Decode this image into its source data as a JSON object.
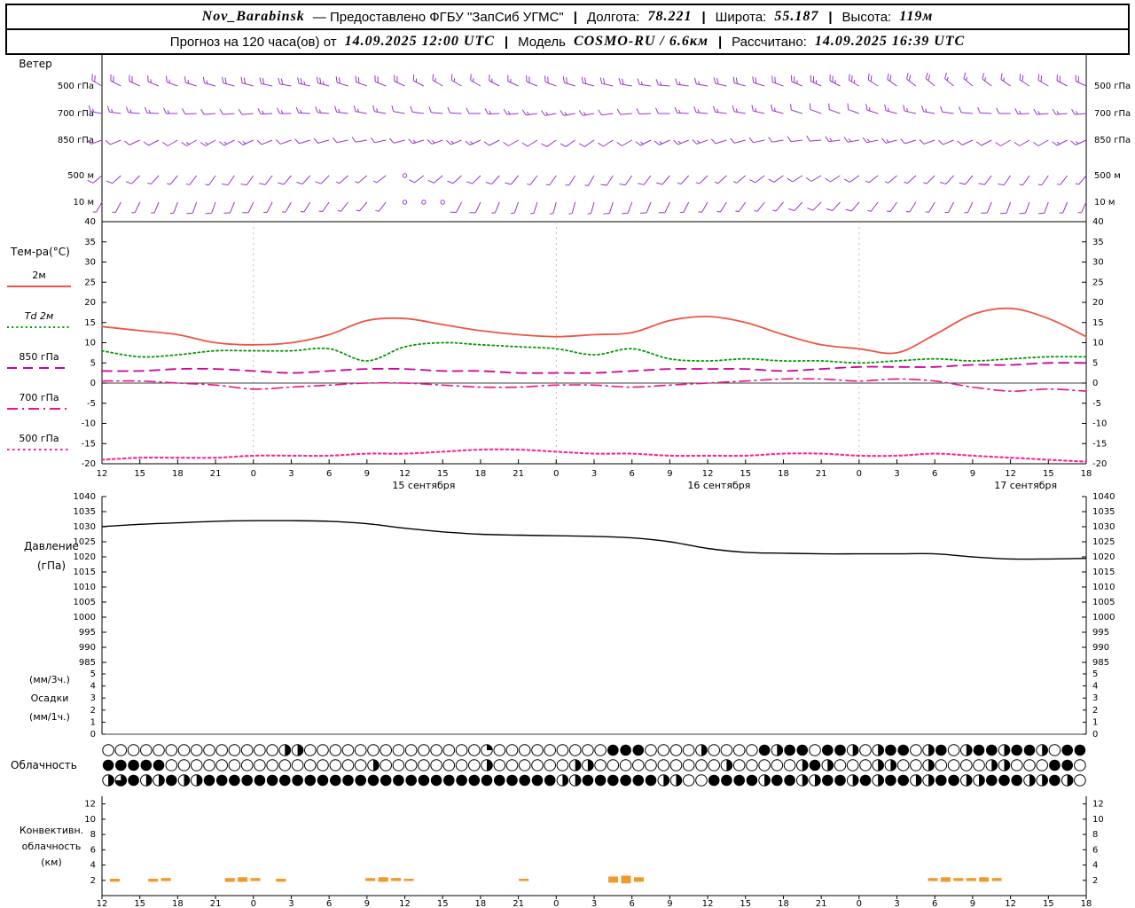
{
  "header": {
    "station": "Nov_Barabinsk",
    "provider": "— Предоставлено ФГБУ \"ЗапСиб УГМС\"",
    "sep": "|",
    "lon_label": "Долгота:",
    "lon": "78.221",
    "lat_label": "Широта:",
    "lat": "55.187",
    "alt_label": "Высота:",
    "alt": "119м",
    "forecast_label": "Прогноз на 120 часа(ов) от",
    "forecast_start": "14.09.2025 12:00 UTC",
    "model_label": "Модель",
    "model": "COSMO-RU / 6.6км",
    "calc_label": "Рассчитано:",
    "calc_time": "14.09.2025 16:39 UTC"
  },
  "x_axis": {
    "hour_step": 3,
    "hour_labels": [
      "12",
      "15",
      "18",
      "21",
      "0",
      "3",
      "6",
      "9",
      "12",
      "15",
      "18",
      "21",
      "0",
      "3",
      "6",
      "9",
      "12",
      "15",
      "18",
      "21",
      "0",
      "3",
      "6",
      "9",
      "12",
      "15",
      "18"
    ],
    "date_labels": [
      {
        "text": "15 сентября",
        "at_index": 8.5
      },
      {
        "text": "16 сентября",
        "at_index": 16.3
      },
      {
        "text": "17 сентября",
        "at_index": 24.4
      }
    ]
  },
  "chart_data": [
    {
      "id": "wind",
      "type": "wind_barbs",
      "title": "Ветер",
      "color": "#9933cc",
      "levels": [
        {
          "label": "500 гПа",
          "dirs_deg": [
            300,
            295,
            290,
            285,
            285,
            280,
            285,
            290,
            295,
            300,
            300,
            295,
            290,
            285,
            280,
            275,
            280,
            285,
            290,
            295,
            300,
            305,
            310,
            310,
            305,
            300,
            295
          ],
          "speeds_kt": [
            20,
            20,
            15,
            15,
            20,
            20,
            25,
            20,
            20,
            15,
            15,
            15,
            20,
            20,
            20,
            15,
            15,
            20,
            20,
            25,
            25,
            20,
            20,
            15,
            15,
            20,
            20
          ]
        },
        {
          "label": "700 гПа",
          "dirs_deg": [
            280,
            275,
            270,
            265,
            265,
            270,
            275,
            280,
            280,
            275,
            270,
            265,
            260,
            260,
            265,
            270,
            275,
            280,
            285,
            290,
            290,
            285,
            280,
            275,
            270,
            265,
            265
          ],
          "speeds_kt": [
            15,
            15,
            15,
            10,
            10,
            15,
            15,
            15,
            10,
            10,
            10,
            15,
            15,
            15,
            10,
            10,
            15,
            15,
            15,
            10,
            10,
            15,
            15,
            10,
            10,
            15,
            15
          ]
        },
        {
          "label": "850 гПа",
          "dirs_deg": [
            250,
            245,
            240,
            240,
            245,
            250,
            255,
            260,
            255,
            250,
            245,
            240,
            235,
            235,
            240,
            245,
            250,
            255,
            260,
            265,
            260,
            255,
            250,
            245,
            240,
            240,
            245
          ],
          "speeds_kt": [
            10,
            10,
            10,
            15,
            15,
            10,
            10,
            10,
            10,
            15,
            15,
            10,
            10,
            10,
            10,
            15,
            15,
            10,
            10,
            10,
            15,
            15,
            10,
            10,
            10,
            10,
            15
          ]
        },
        {
          "label": "500 м",
          "dirs_deg": [
            230,
            225,
            220,
            215,
            215,
            220,
            225,
            230,
            235,
            230,
            225,
            220,
            215,
            210,
            215,
            220,
            225,
            230,
            235,
            240,
            235,
            230,
            225,
            220,
            215,
            215,
            220
          ],
          "speeds_kt": [
            10,
            10,
            5,
            5,
            10,
            10,
            10,
            5,
            0,
            10,
            10,
            10,
            5,
            5,
            10,
            10,
            5,
            5,
            10,
            10,
            10,
            5,
            5,
            10,
            10,
            5,
            5
          ]
        },
        {
          "label": "10 м",
          "dirs_deg": [
            210,
            205,
            200,
            200,
            205,
            210,
            215,
            220,
            215,
            210,
            205,
            200,
            195,
            195,
            200,
            205,
            210,
            215,
            220,
            225,
            220,
            215,
            210,
            205,
            200,
            200,
            205
          ],
          "speeds_kt": [
            5,
            5,
            5,
            10,
            10,
            5,
            5,
            5,
            0,
            0,
            10,
            5,
            5,
            5,
            10,
            10,
            5,
            5,
            5,
            10,
            10,
            5,
            5,
            5,
            10,
            10,
            5
          ]
        }
      ]
    },
    {
      "id": "temperature",
      "type": "line",
      "title": "Тем-ра(°C)",
      "ylim": [
        -20,
        40
      ],
      "ytick_step": 5,
      "series": [
        {
          "name": "2м",
          "color": "#ee5544",
          "dash": "solid",
          "width": 1.8,
          "italic": false,
          "values": [
            14,
            13,
            12,
            10,
            9.5,
            10,
            12,
            15.5,
            16,
            14.5,
            13,
            12,
            11.5,
            12,
            12.5,
            15.5,
            16.5,
            15,
            12,
            9.5,
            8.5,
            7.5,
            12,
            17,
            18.5,
            16,
            11.5
          ]
        },
        {
          "name": "Td 2м",
          "color": "#009900",
          "dash": "dotted",
          "width": 1.8,
          "italic": true,
          "values": [
            8,
            6.5,
            7,
            8,
            8,
            8,
            8.5,
            5.5,
            9,
            10,
            9.5,
            9,
            8.5,
            7,
            8.5,
            6,
            5.5,
            6,
            5.5,
            5.5,
            5,
            5.5,
            6,
            5.5,
            6,
            6.5,
            6.5
          ]
        },
        {
          "name": "850 гПа",
          "color": "#cc0099",
          "dash": "longdash",
          "width": 1.8,
          "italic": false,
          "values": [
            3,
            3,
            3.5,
            3.5,
            3,
            2.5,
            3,
            3.5,
            3.5,
            3,
            3,
            2.5,
            2.5,
            2.5,
            3,
            3.5,
            3.5,
            3.5,
            3,
            3.5,
            4,
            4,
            4,
            4.5,
            4.5,
            5,
            5
          ]
        },
        {
          "name": "700 гПа",
          "color": "#ee1188",
          "dash": "dashdot",
          "width": 1.6,
          "italic": false,
          "values": [
            0.5,
            0.5,
            0,
            -0.5,
            -1.5,
            -1,
            -0.5,
            0,
            0,
            -0.5,
            -1,
            -1,
            -0.5,
            -0.5,
            -1,
            -0.5,
            0,
            0.5,
            1,
            1,
            0.5,
            1,
            0.5,
            -1,
            -2,
            -1.5,
            -2
          ]
        },
        {
          "name": "500 гПа",
          "color": "#ff2299",
          "dash": "dotted_bold",
          "width": 2.1,
          "italic": false,
          "values": [
            -19,
            -18.5,
            -18.5,
            -18.5,
            -18,
            -18,
            -18,
            -17.5,
            -17.5,
            -17,
            -16.5,
            -16.5,
            -17,
            -17.5,
            -17.5,
            -18,
            -18,
            -18,
            -17.5,
            -17.5,
            -18,
            -18,
            -17.5,
            -18,
            -18.5,
            -19,
            -19.5
          ]
        }
      ]
    },
    {
      "id": "pressure",
      "type": "line",
      "title_lines": [
        "Давление",
        "(гПа)"
      ],
      "ylim": [
        985,
        1040
      ],
      "ytick_step": 5,
      "series": [
        {
          "name": "Давление",
          "color": "#000000",
          "dash": "solid",
          "values": [
            1030,
            1030.8,
            1031.3,
            1031.8,
            1032,
            1032,
            1031.8,
            1031,
            1029.5,
            1028.3,
            1027.5,
            1027.2,
            1027,
            1026.8,
            1026.3,
            1025,
            1022.8,
            1021.5,
            1021.2,
            1021,
            1021,
            1021,
            1021,
            1020,
            1019.3,
            1019.3,
            1019.5
          ]
        }
      ]
    },
    {
      "id": "precipitation",
      "type": "bar",
      "title_lines": [
        "(мм/3ч.)",
        "Осадки",
        "(мм/1ч.)"
      ],
      "ylim": [
        0,
        5
      ],
      "ytick_step": 1,
      "color": "#00aa00",
      "values": [
        0,
        0,
        0,
        0,
        0,
        0,
        0,
        0,
        0,
        0,
        0,
        0,
        0,
        0,
        0,
        0,
        0,
        0,
        0,
        0,
        0,
        0,
        0,
        0,
        0,
        0,
        0
      ]
    },
    {
      "id": "cloudiness",
      "type": "cloud_symbols",
      "title": "Облачность",
      "fill_scale": "каждый символ: 0=0, 1=1/4, 2=1/2, 3=3/4, 4=сплошная облачность",
      "rows": [
        "000000000000002200000000000000100000000044400002000042440442024402402442442044",
        "444440000000000000000200000000200000022000000000020000024200022002000022000440",
        "234224224444444444444444444444444444224444442200444424422442424422442244422420"
      ]
    },
    {
      "id": "convective",
      "type": "layer_bars",
      "title_lines": [
        "Конвективн.",
        "облачность",
        "(км)"
      ],
      "ylim": [
        0,
        13
      ],
      "yticks": [
        2,
        4,
        6,
        8,
        10,
        12
      ],
      "color": "#f09a2e",
      "segments": [
        [
          1,
          1.8,
          2.2
        ],
        [
          4,
          1.8,
          2.2
        ],
        [
          5,
          1.9,
          2.3
        ],
        [
          10,
          1.8,
          2.3
        ],
        [
          11,
          1.8,
          2.4
        ],
        [
          12,
          1.9,
          2.3
        ],
        [
          14,
          1.8,
          2.2
        ],
        [
          21,
          1.9,
          2.3
        ],
        [
          22,
          1.8,
          2.4
        ],
        [
          23,
          1.9,
          2.3
        ],
        [
          24,
          1.9,
          2.2
        ],
        [
          33,
          1.9,
          2.2
        ],
        [
          40,
          1.7,
          2.5
        ],
        [
          41,
          1.6,
          2.6
        ],
        [
          42,
          1.8,
          2.4
        ],
        [
          65,
          1.9,
          2.3
        ],
        [
          66,
          1.8,
          2.4
        ],
        [
          67,
          1.9,
          2.3
        ],
        [
          68,
          1.9,
          2.3
        ],
        [
          69,
          1.8,
          2.4
        ],
        [
          70,
          1.9,
          2.3
        ]
      ]
    }
  ]
}
